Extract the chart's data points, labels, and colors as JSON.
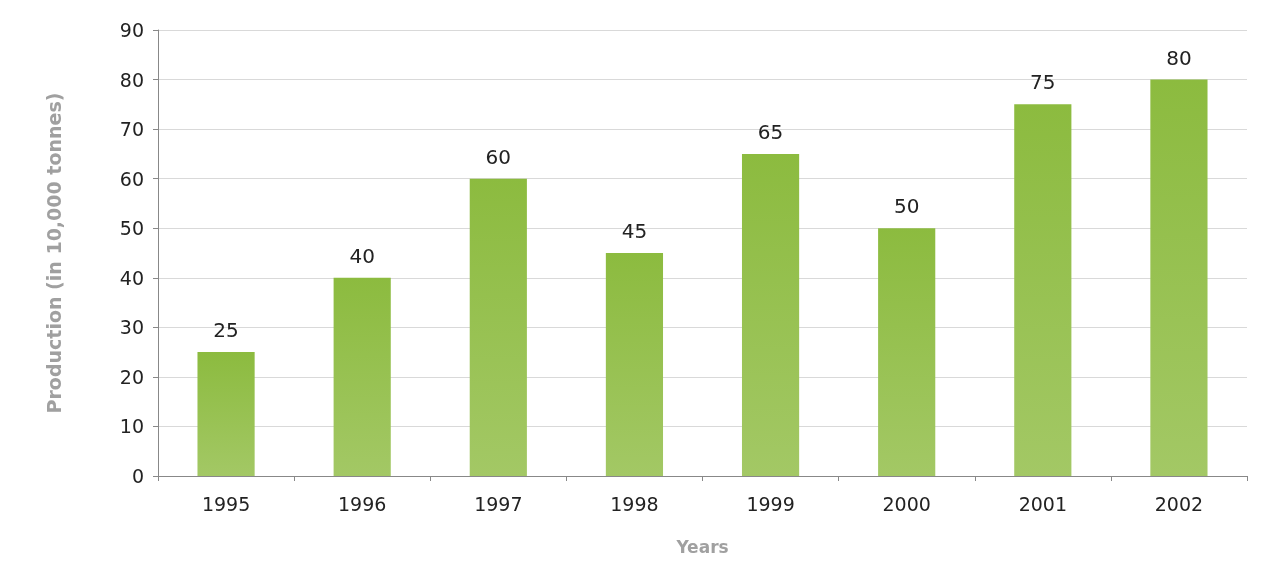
{
  "chart_data": {
    "type": "bar",
    "xlabel": "Years",
    "ylabel": "Production (in 10,000 tonnes)",
    "categories": [
      "1995",
      "1996",
      "1997",
      "1998",
      "1999",
      "2000",
      "2001",
      "2002"
    ],
    "values": [
      25,
      40,
      60,
      45,
      65,
      50,
      75,
      80
    ],
    "color": "#8cbb3f",
    "ylim": [
      0,
      90
    ],
    "yticks": [
      0,
      10,
      20,
      30,
      40,
      50,
      60,
      70,
      80,
      90
    ],
    "grid": "y",
    "data_labels": true
  }
}
